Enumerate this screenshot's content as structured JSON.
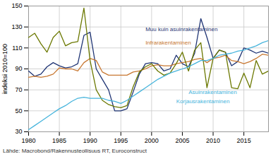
{
  "chart_data": {
    "type": "line",
    "x": [
      1980,
      1981,
      1982,
      1983,
      1984,
      1985,
      1986,
      1987,
      1988,
      1989,
      1990,
      1991,
      1992,
      1993,
      1994,
      1995,
      1996,
      1997,
      1998,
      1999,
      2000,
      2001,
      2002,
      2003,
      2004,
      2005,
      2006,
      2007,
      2008,
      2009,
      2010,
      2011,
      2012,
      2013,
      2014,
      2015,
      2016,
      2017,
      2018,
      2019
    ],
    "series": [
      {
        "name": "Muu kuin asuinrakentaminen",
        "color": "#1f3474",
        "values": [
          88,
          83,
          85,
          92,
          96,
          93,
          91,
          92,
          95,
          122,
          125,
          90,
          80,
          70,
          50,
          50,
          52,
          68,
          85,
          95,
          96,
          95,
          88,
          90,
          103,
          95,
          92,
          105,
          138,
          120,
          100,
          108,
          106,
          93,
          97,
          110,
          108,
          105,
          107,
          105
        ]
      },
      {
        "name": "Infrarakentaminen",
        "color": "#c87832",
        "values": [
          82,
          83,
          82,
          83,
          85,
          91,
          90,
          90,
          88,
          96,
          100,
          98,
          87,
          84,
          84,
          84,
          84,
          87,
          88,
          90,
          93,
          94,
          93,
          93,
          95,
          96,
          97,
          99,
          100,
          96,
          100,
          101,
          103,
          98,
          97,
          95,
          97,
          100,
          104,
          103
        ]
      },
      {
        "name": "Asuinrakentaminen",
        "color": "#6b7800",
        "values": [
          120,
          124,
          114,
          106,
          120,
          126,
          112,
          115,
          116,
          148,
          98,
          70,
          60,
          56,
          54,
          53,
          55,
          73,
          87,
          92,
          95,
          88,
          84,
          86,
          95,
          106,
          88,
          108,
          115,
          72,
          100,
          108,
          106,
          72,
          71,
          86,
          72,
          98,
          85,
          88
        ]
      },
      {
        "name": "Korjausrakentaminen",
        "color": "#46b4dc",
        "values": [
          32,
          36,
          40,
          44,
          48,
          52,
          55,
          59,
          62,
          63,
          62,
          62,
          62,
          60,
          59,
          57,
          60,
          64,
          68,
          72,
          76,
          80,
          83,
          86,
          88,
          90,
          92,
          95,
          98,
          98,
          100,
          103,
          104,
          105,
          107,
          108,
          110,
          112,
          115,
          117
        ]
      }
    ],
    "xlim": [
      1980,
      2019
    ],
    "xticks": [
      1980,
      1985,
      1990,
      1995,
      2000,
      2005,
      2010,
      2015
    ],
    "ylim": [
      30,
      150
    ],
    "yticks": [
      30,
      50,
      70,
      90,
      110,
      130,
      150
    ],
    "ylabel": "indeksi 2010=100",
    "grid": true,
    "annotations": [
      {
        "text": "Muu kuin asuinrakentaminen",
        "x": 1999,
        "y": 126,
        "color": "#1f3474"
      },
      {
        "text": "Infrarakentaminen",
        "x": 1999,
        "y": 113,
        "color": "#c87832"
      },
      {
        "text": "Asuinrakentaminen",
        "x": 2006,
        "y": 66,
        "color": "#46b4dc"
      },
      {
        "text": "Korjausrakentaminen",
        "x": 2004,
        "y": 57,
        "color": "#46b4dc"
      }
    ],
    "source": "Lähde: Macrobond/Rakennusteollisuus RT, Euroconstruct"
  }
}
